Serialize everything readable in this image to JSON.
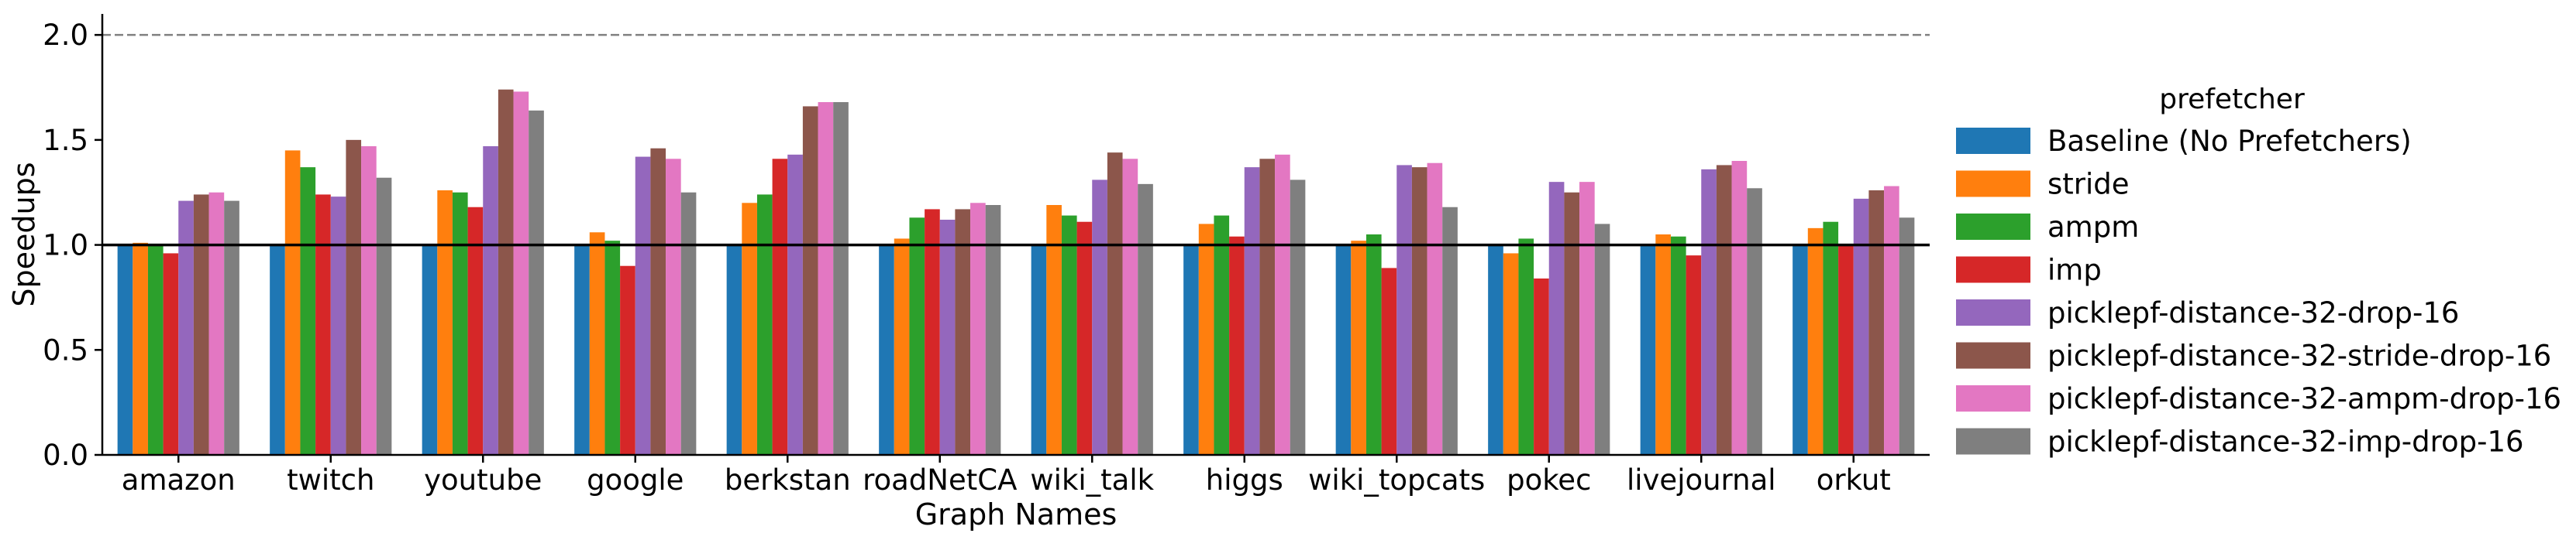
{
  "chart_data": {
    "type": "bar",
    "xlabel": "Graph Names",
    "ylabel": "Speedups",
    "ylim": [
      0,
      2.1
    ],
    "yticks": [
      "0.0",
      "0.5",
      "1.0",
      "1.5",
      "2.0"
    ],
    "ytick_values": [
      0,
      0.5,
      1.0,
      1.5,
      2.0
    ],
    "reference_lines": [
      {
        "y": 1.0,
        "style": "solid",
        "color": "#000000"
      },
      {
        "y": 2.0,
        "style": "dashed",
        "color": "#808080"
      }
    ],
    "legend_title": "prefetcher",
    "legend_position": "right",
    "grid": false,
    "categories": [
      "amazon",
      "twitch",
      "youtube",
      "google",
      "berkstan",
      "roadNetCA",
      "wiki_talk",
      "higgs",
      "wiki_topcats",
      "pokec",
      "livejournal",
      "orkut"
    ],
    "series": [
      {
        "name": "Baseline (No Prefetchers)",
        "color": "#1f77b4",
        "values": [
          1.0,
          1.0,
          1.0,
          1.0,
          1.0,
          1.0,
          1.0,
          1.0,
          1.0,
          1.0,
          1.0,
          1.0
        ]
      },
      {
        "name": "stride",
        "color": "#ff7f0e",
        "values": [
          1.01,
          1.45,
          1.26,
          1.06,
          1.2,
          1.03,
          1.19,
          1.1,
          1.02,
          0.96,
          1.05,
          1.08
        ]
      },
      {
        "name": "ampm",
        "color": "#2ca02c",
        "values": [
          1.0,
          1.37,
          1.25,
          1.02,
          1.24,
          1.13,
          1.14,
          1.14,
          1.05,
          1.03,
          1.04,
          1.11
        ]
      },
      {
        "name": "imp",
        "color": "#d62728",
        "values": [
          0.96,
          1.24,
          1.18,
          0.9,
          1.41,
          1.17,
          1.11,
          1.04,
          0.89,
          0.84,
          0.95,
          1.0
        ]
      },
      {
        "name": "picklepf-distance-32-drop-16",
        "color": "#9467bd",
        "values": [
          1.21,
          1.23,
          1.47,
          1.42,
          1.43,
          1.12,
          1.31,
          1.37,
          1.38,
          1.3,
          1.36,
          1.22
        ]
      },
      {
        "name": "picklepf-distance-32-stride-drop-16",
        "color": "#8c564b",
        "values": [
          1.24,
          1.5,
          1.74,
          1.46,
          1.66,
          1.17,
          1.44,
          1.41,
          1.37,
          1.25,
          1.38,
          1.26
        ]
      },
      {
        "name": "picklepf-distance-32-ampm-drop-16",
        "color": "#e377c2",
        "values": [
          1.25,
          1.47,
          1.73,
          1.41,
          1.68,
          1.2,
          1.41,
          1.43,
          1.39,
          1.3,
          1.4,
          1.28
        ]
      },
      {
        "name": "picklepf-distance-32-imp-drop-16",
        "color": "#7f7f7f",
        "values": [
          1.21,
          1.32,
          1.64,
          1.25,
          1.68,
          1.19,
          1.29,
          1.31,
          1.18,
          1.1,
          1.27,
          1.13
        ]
      }
    ]
  }
}
